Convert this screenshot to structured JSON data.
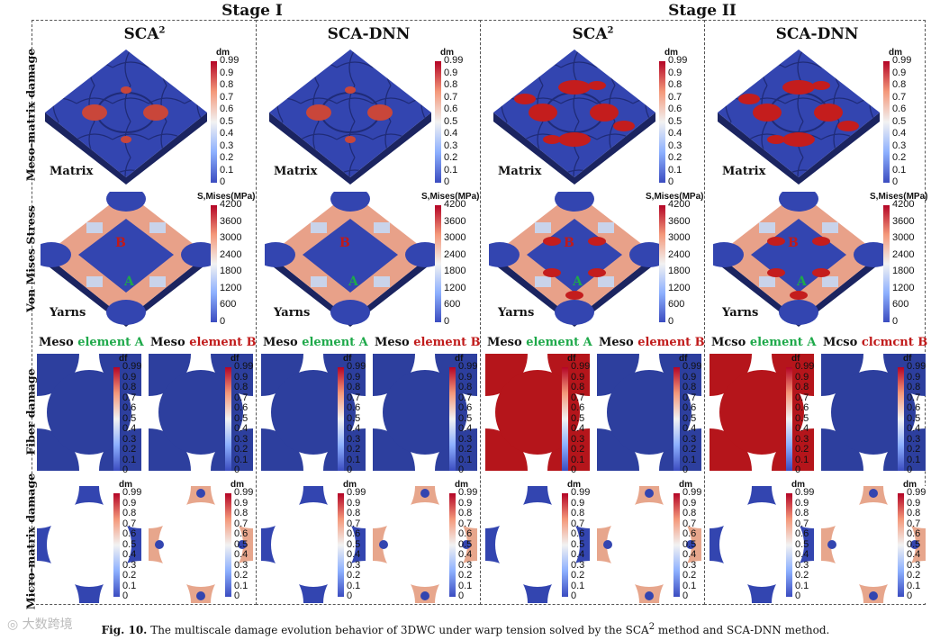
{
  "stages": [
    "Stage I",
    "Stage II"
  ],
  "methods": [
    "SCA",
    "SCA-DNN",
    "SCA",
    "SCA-DNN"
  ],
  "method_superscripts": [
    "2",
    "",
    "2",
    ""
  ],
  "row_labels": [
    "Meso-matrix damage",
    "Von Mises Stress",
    "Fiber damage",
    "Micro-matrix damage"
  ],
  "sub_labels": {
    "matrix": "Matrix",
    "yarns": "Yarns"
  },
  "points": {
    "a": "A",
    "b": "B"
  },
  "meso_titles": [
    {
      "meso": "Meso",
      "elem": "element A"
    },
    {
      "meso": "Meso",
      "elem": "element B"
    },
    {
      "meso": "Meso",
      "elem": "element A"
    },
    {
      "meso": "Meso",
      "elem": "element B"
    },
    {
      "meso": "Meso",
      "elem": "element A"
    },
    {
      "meso": "Meso",
      "elem": "element B"
    },
    {
      "meso": "Mcso",
      "elem": "element A"
    },
    {
      "meso": "Mcso",
      "elem": "clcmcnt B"
    }
  ],
  "colorbars": {
    "dm": {
      "title": "dm",
      "ticks": [
        "0.99",
        "0.9",
        "0.8",
        "0.7",
        "0.6",
        "0.5",
        "0.4",
        "0.3",
        "0.2",
        "0.1",
        "0"
      ]
    },
    "stress": {
      "title": "S,Mises(MPa)",
      "ticks": [
        "4200",
        "3600",
        "3000",
        "2400",
        "1800",
        "1200",
        "600",
        "0"
      ]
    },
    "df": {
      "title": "df",
      "ticks": [
        "0.99",
        "0.9",
        "0.8",
        "0.7",
        "0.6",
        "0.5",
        "0.4",
        "0.3",
        "0.2",
        "0.1",
        "0"
      ]
    }
  },
  "fiber_damage_state": [
    "undamaged",
    "undamaged",
    "undamaged",
    "undamaged",
    "damaged",
    "undamaged",
    "damaged",
    "undamaged"
  ],
  "colors": {
    "low": "#2d3f9e",
    "high": "#b5151b",
    "mid": "#f0e0dc",
    "green": "#1ea94a",
    "red": "#c01a1a"
  },
  "caption": {
    "fig": "Fig. 10.",
    "text": "The multiscale damage evolution behavior of 3DWC under warp tension solved by the SCA",
    "sup": "2",
    "tail": " method and SCA-DNN method."
  },
  "watermark": "大数跨境"
}
